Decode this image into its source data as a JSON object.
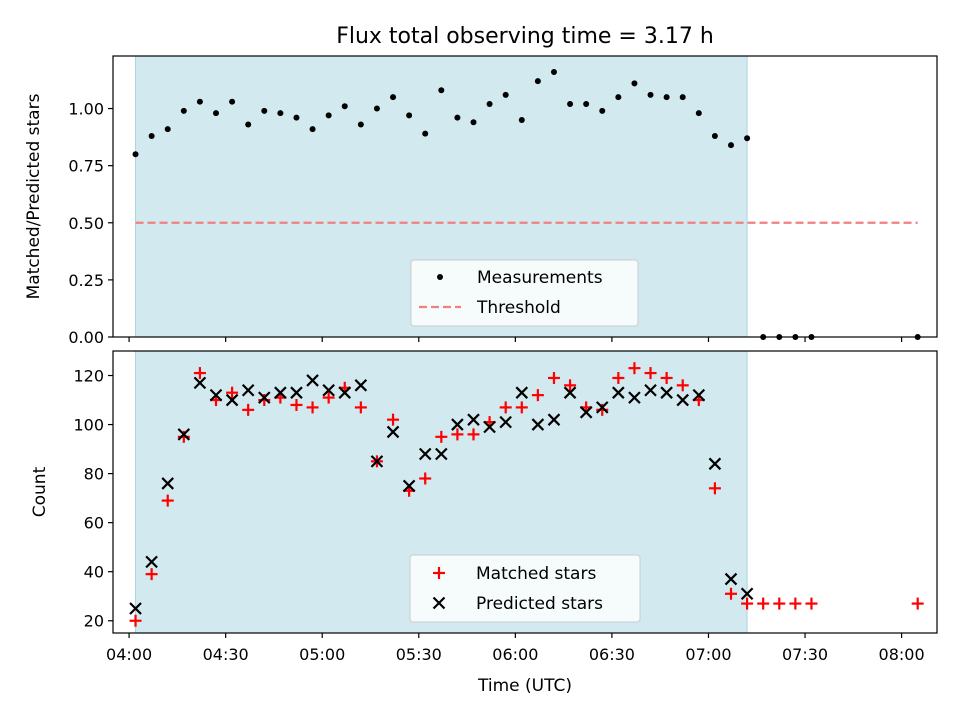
{
  "colors": {
    "shade": "#d3e9f0",
    "shade_edge": "#a8d5df",
    "threshold": "#f08080",
    "measurement": "#000000",
    "matched": "#ff0000",
    "predicted": "#000000"
  },
  "chart_data": [
    {
      "panel": "top",
      "type": "scatter",
      "title": "Flux total observing time = 3.17 h",
      "xlabel": "",
      "ylabel": "Matched/Predicted stars",
      "xlim": [
        "03:55",
        "08:11"
      ],
      "ylim": [
        0,
        1.23
      ],
      "yticks": [
        "0.00",
        "0.25",
        "0.50",
        "0.75",
        "1.00"
      ],
      "shaded_span": [
        "04:02",
        "07:12"
      ],
      "legend": {
        "placement": "lower center",
        "entries": [
          "Measurements",
          "Threshold"
        ]
      },
      "threshold": {
        "name": "Threshold",
        "value": 0.5,
        "x": [
          "04:02",
          "08:05"
        ]
      },
      "series": [
        {
          "name": "Measurements",
          "x": [
            "04:02",
            "04:07",
            "04:12",
            "04:17",
            "04:22",
            "04:27",
            "04:32",
            "04:37",
            "04:42",
            "04:47",
            "04:52",
            "04:57",
            "05:02",
            "05:07",
            "05:12",
            "05:17",
            "05:22",
            "05:27",
            "05:32",
            "05:37",
            "05:42",
            "05:47",
            "05:52",
            "05:57",
            "06:02",
            "06:07",
            "06:12",
            "06:17",
            "06:22",
            "06:27",
            "06:32",
            "06:37",
            "06:42",
            "06:47",
            "06:52",
            "06:57",
            "07:02",
            "07:07",
            "07:12",
            "07:17",
            "07:22",
            "07:27",
            "07:32",
            "08:05"
          ],
          "y": [
            0.8,
            0.88,
            0.91,
            0.99,
            1.03,
            0.98,
            1.03,
            0.93,
            0.99,
            0.98,
            0.96,
            0.91,
            0.97,
            1.01,
            0.93,
            1.0,
            1.05,
            0.97,
            0.89,
            1.08,
            0.96,
            0.94,
            1.02,
            1.06,
            0.95,
            1.12,
            1.16,
            1.02,
            1.02,
            0.99,
            1.05,
            1.11,
            1.06,
            1.05,
            1.05,
            0.98,
            0.88,
            0.84,
            0.87,
            0.0,
            0.0,
            0.0,
            0.0,
            0.0
          ]
        }
      ]
    },
    {
      "panel": "bottom",
      "type": "scatter",
      "xlabel": "Time (UTC)",
      "ylabel": "Count",
      "xlim": [
        "03:55",
        "08:11"
      ],
      "ylim": [
        15,
        130
      ],
      "xticks": [
        "04:00",
        "04:30",
        "05:00",
        "05:30",
        "06:00",
        "06:30",
        "07:00",
        "07:30",
        "08:00"
      ],
      "yticks": [
        "20",
        "40",
        "60",
        "80",
        "100",
        "120"
      ],
      "shaded_span": [
        "04:02",
        "07:12"
      ],
      "legend": {
        "placement": "lower center",
        "entries": [
          "Matched stars",
          "Predicted stars"
        ]
      },
      "series": [
        {
          "name": "Matched stars",
          "marker": "+",
          "x": [
            "04:02",
            "04:07",
            "04:12",
            "04:17",
            "04:22",
            "04:27",
            "04:32",
            "04:37",
            "04:42",
            "04:47",
            "04:52",
            "04:57",
            "05:02",
            "05:07",
            "05:12",
            "05:17",
            "05:22",
            "05:27",
            "05:32",
            "05:37",
            "05:42",
            "05:47",
            "05:52",
            "05:57",
            "06:02",
            "06:07",
            "06:12",
            "06:17",
            "06:22",
            "06:27",
            "06:32",
            "06:37",
            "06:42",
            "06:47",
            "06:52",
            "06:57",
            "07:02",
            "07:07",
            "07:12",
            "07:17",
            "07:22",
            "07:27",
            "07:32",
            "08:05"
          ],
          "y": [
            20,
            39,
            69,
            95,
            121,
            110,
            113,
            106,
            110,
            111,
            108,
            107,
            111,
            115,
            107,
            85,
            102,
            73,
            78,
            95,
            96,
            96,
            101,
            107,
            107,
            112,
            119,
            116,
            107,
            106,
            119,
            123,
            121,
            119,
            116,
            110,
            74,
            31,
            27,
            27,
            27,
            27,
            27,
            27
          ]
        },
        {
          "name": "Predicted stars",
          "marker": "x",
          "x": [
            "04:02",
            "04:07",
            "04:12",
            "04:17",
            "04:22",
            "04:27",
            "04:32",
            "04:37",
            "04:42",
            "04:47",
            "04:52",
            "04:57",
            "05:02",
            "05:07",
            "05:12",
            "05:17",
            "05:22",
            "05:27",
            "05:32",
            "05:37",
            "05:42",
            "05:47",
            "05:52",
            "05:57",
            "06:02",
            "06:07",
            "06:12",
            "06:17",
            "06:22",
            "06:27",
            "06:32",
            "06:37",
            "06:42",
            "06:47",
            "06:52",
            "06:57",
            "07:02",
            "07:07",
            "07:12"
          ],
          "y": [
            25,
            44,
            76,
            96,
            117,
            112,
            110,
            114,
            111,
            113,
            113,
            118,
            114,
            113,
            116,
            85,
            97,
            75,
            88,
            88,
            100,
            102,
            99,
            101,
            113,
            100,
            102,
            113,
            105,
            107,
            113,
            111,
            114,
            113,
            110,
            112,
            84,
            37,
            31
          ]
        }
      ]
    }
  ]
}
